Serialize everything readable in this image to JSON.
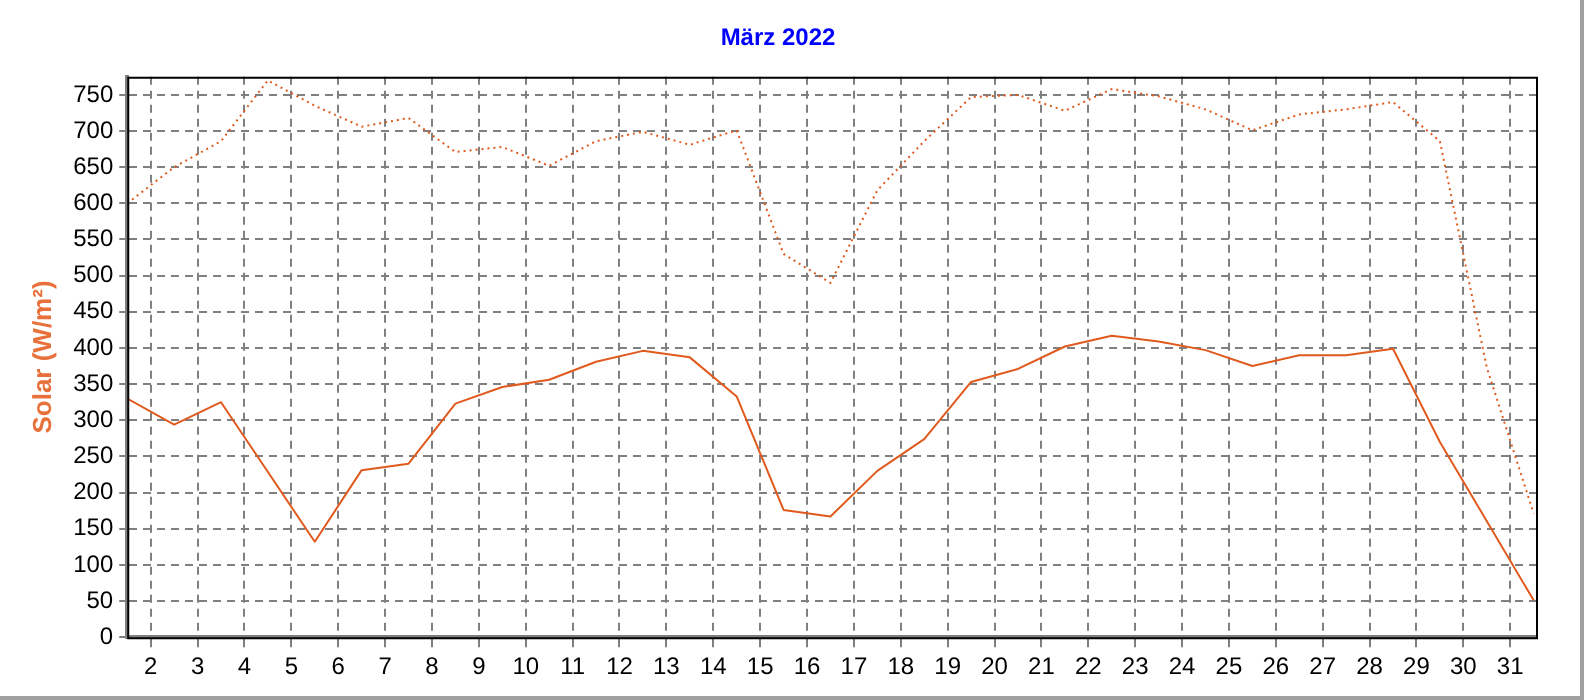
{
  "chart_data": {
    "type": "line",
    "title": "März 2022",
    "ylabel": "Solar (W/m²)",
    "xlim": [
      1.5,
      31.55
    ],
    "xticks": [
      2,
      3,
      4,
      5,
      6,
      7,
      8,
      9,
      10,
      11,
      12,
      13,
      14,
      15,
      16,
      17,
      18,
      19,
      20,
      21,
      22,
      23,
      24,
      25,
      26,
      27,
      28,
      29,
      30,
      31
    ],
    "ylim": [
      0,
      775
    ],
    "yticks": [
      0,
      50,
      100,
      150,
      200,
      250,
      300,
      350,
      400,
      450,
      500,
      550,
      600,
      650,
      700,
      750
    ],
    "grid": true,
    "marker": "none",
    "series": [
      {
        "color": "#e05a1e",
        "line_style": "dotted",
        "x": [
          1.5,
          2.5,
          3.5,
          4.5,
          5.5,
          6.5,
          7.5,
          8.5,
          9.5,
          10.5,
          11.5,
          12.5,
          13.5,
          14.5,
          15.5,
          16.5,
          17.5,
          18.5,
          19.5,
          20.5,
          21.5,
          22.5,
          23.5,
          24.5,
          25.5,
          26.5,
          27.5,
          28.5,
          29.5,
          30.5,
          31.5
        ],
        "values": [
          600,
          650,
          686,
          770,
          735,
          706,
          718,
          671,
          678,
          652,
          686,
          699,
          681,
          701,
          530,
          490,
          618,
          686,
          747,
          750,
          728,
          758,
          748,
          730,
          701,
          723,
          730,
          740,
          686,
          373,
          171
        ]
      },
      {
        "color": "#e05a1e",
        "line_style": "solid",
        "x": [
          1.5,
          2.5,
          3.5,
          5.5,
          6.5,
          7.5,
          8.5,
          9.5,
          10.5,
          11.5,
          12.5,
          13.5,
          14.5,
          15.5,
          16.5,
          17.5,
          18.5,
          19.5,
          20.5,
          21.5,
          22.5,
          23.5,
          24.5,
          25.5,
          26.5,
          27.5,
          28.5,
          29.5,
          31.5
        ],
        "values": [
          330,
          294,
          325,
          132,
          231,
          240,
          323,
          346,
          356,
          381,
          396,
          387,
          333,
          176,
          167,
          230,
          274,
          353,
          371,
          402,
          417,
          409,
          397,
          375,
          390,
          390,
          399,
          270,
          51
        ]
      }
    ]
  }
}
